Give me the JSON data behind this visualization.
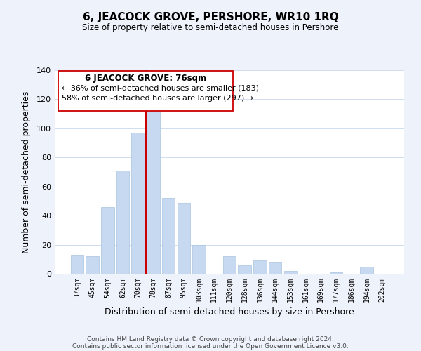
{
  "title": "6, JEACOCK GROVE, PERSHORE, WR10 1RQ",
  "subtitle": "Size of property relative to semi-detached houses in Pershore",
  "xlabel": "Distribution of semi-detached houses by size in Pershore",
  "ylabel": "Number of semi-detached properties",
  "categories": [
    "37sqm",
    "45sqm",
    "54sqm",
    "62sqm",
    "70sqm",
    "78sqm",
    "87sqm",
    "95sqm",
    "103sqm",
    "111sqm",
    "120sqm",
    "128sqm",
    "136sqm",
    "144sqm",
    "153sqm",
    "161sqm",
    "169sqm",
    "177sqm",
    "186sqm",
    "194sqm",
    "202sqm"
  ],
  "values": [
    13,
    12,
    46,
    71,
    97,
    114,
    52,
    49,
    20,
    0,
    12,
    6,
    9,
    8,
    2,
    0,
    0,
    1,
    0,
    5,
    0
  ],
  "bar_color": "#c6d9f0",
  "bar_edge_color": "#a8c4e0",
  "highlight_color": "#cc0000",
  "ylim": [
    0,
    140
  ],
  "yticks": [
    0,
    20,
    40,
    60,
    80,
    100,
    120,
    140
  ],
  "annotation_title": "6 JEACOCK GROVE: 76sqm",
  "annotation_line1": "← 36% of semi-detached houses are smaller (183)",
  "annotation_line2": "58% of semi-detached houses are larger (297) →",
  "footer_line1": "Contains HM Land Registry data © Crown copyright and database right 2024.",
  "footer_line2": "Contains public sector information licensed under the Open Government Licence v3.0.",
  "background_color": "#eef2fb",
  "plot_background": "#ffffff",
  "grid_color": "#d0ddf0"
}
